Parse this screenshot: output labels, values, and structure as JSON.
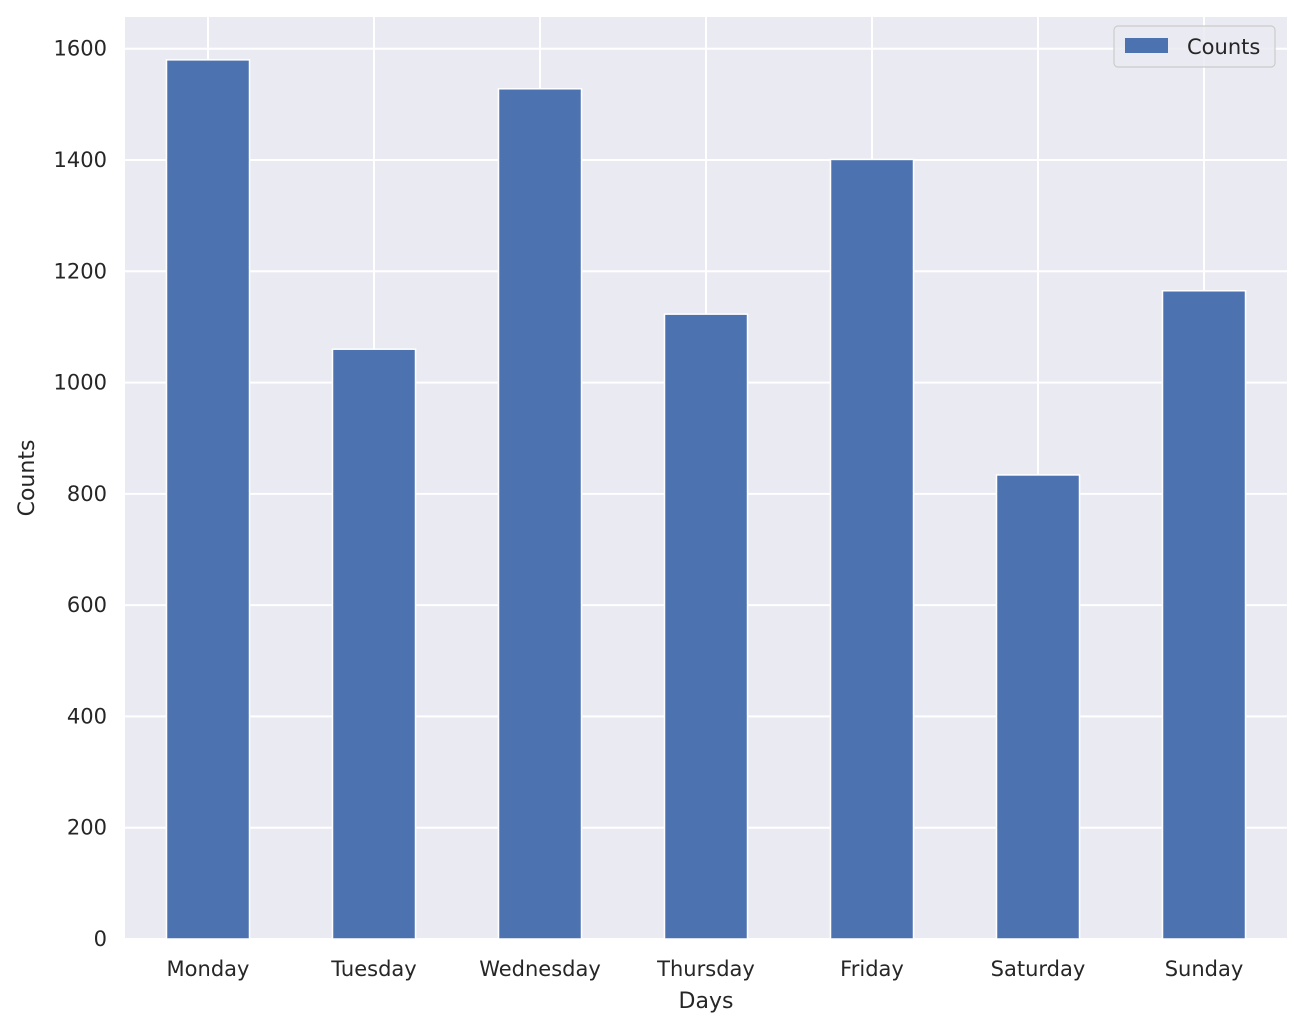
{
  "chart_data": {
    "type": "bar",
    "categories": [
      "Monday",
      "Tuesday",
      "Wednesday",
      "Thursday",
      "Friday",
      "Saturday",
      "Sunday"
    ],
    "series": [
      {
        "name": "Counts",
        "values": [
          1580,
          1060,
          1528,
          1123,
          1401,
          834,
          1165
        ],
        "color": "#4c72b0"
      }
    ],
    "xlabel": "Days",
    "ylabel": "Counts",
    "ylim": [
      0,
      1657
    ],
    "yticks": [
      0,
      200,
      400,
      600,
      800,
      1000,
      1200,
      1400,
      1600
    ],
    "grid": true,
    "legend": "top-right",
    "background": "#eaeaf2",
    "grid_color": "#ffffff"
  }
}
